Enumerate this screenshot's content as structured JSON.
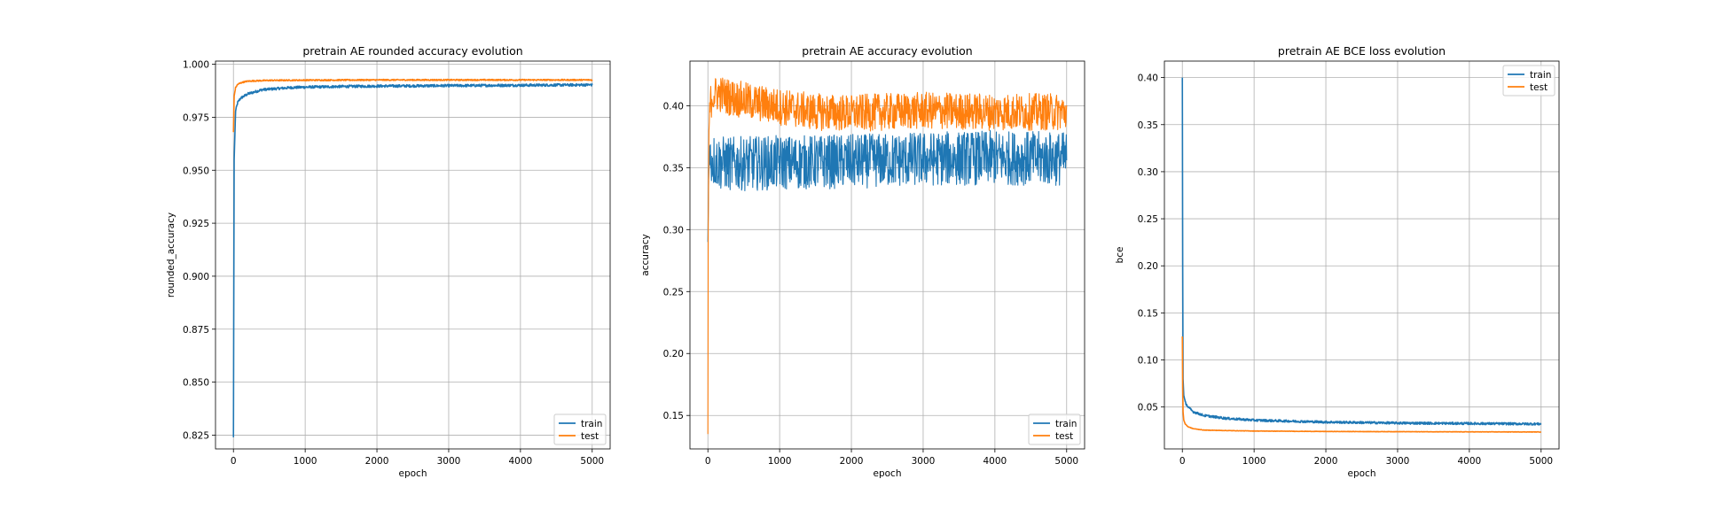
{
  "colors": {
    "train": "#1f77b4",
    "test": "#ff7f0e",
    "grid": "#b0b0b0"
  },
  "chart_data": [
    {
      "type": "line",
      "title": "pretrain AE rounded accuracy evolution",
      "xlabel": "epoch",
      "ylabel": "rounded_accuracy",
      "xlim": [
        -250,
        5250
      ],
      "ylim": [
        0.8185,
        1.0015
      ],
      "xticks": [
        0,
        1000,
        2000,
        3000,
        4000,
        5000
      ],
      "xtick_labels": [
        "0",
        "1000",
        "2000",
        "3000",
        "4000",
        "5000"
      ],
      "yticks": [
        0.825,
        0.85,
        0.875,
        0.9,
        0.925,
        0.95,
        0.975,
        1.0
      ],
      "ytick_labels": [
        "0.825",
        "0.850",
        "0.875",
        "0.900",
        "0.925",
        "0.950",
        "0.975",
        "1.000"
      ],
      "grid": true,
      "legend_loc": "lower right",
      "series": [
        {
          "name": "train",
          "noise": 0.0006,
          "x": [
            0,
            10,
            30,
            60,
            100,
            150,
            200,
            300,
            400,
            600,
            800,
            1000,
            1500,
            2000,
            3000,
            4000,
            5000
          ],
          "y": [
            0.824,
            0.955,
            0.978,
            0.982,
            0.984,
            0.985,
            0.986,
            0.987,
            0.988,
            0.9885,
            0.989,
            0.9892,
            0.9895,
            0.9897,
            0.9899,
            0.9901,
            0.9903
          ]
        },
        {
          "name": "test",
          "noise": 0.0003,
          "x": [
            0,
            10,
            30,
            60,
            100,
            150,
            200,
            300,
            500,
            1000,
            2000,
            3000,
            4000,
            5000
          ],
          "y": [
            0.968,
            0.985,
            0.989,
            0.9905,
            0.9912,
            0.9917,
            0.992,
            0.9922,
            0.9924,
            0.9925,
            0.9926,
            0.9926,
            0.9926,
            0.9926
          ]
        }
      ]
    },
    {
      "type": "line",
      "title": "pretrain AE accuracy evolution",
      "xlabel": "epoch",
      "ylabel": "accuracy",
      "xlim": [
        -250,
        5250
      ],
      "ylim": [
        0.123,
        0.436
      ],
      "xticks": [
        0,
        1000,
        2000,
        3000,
        4000,
        5000
      ],
      "xtick_labels": [
        "0",
        "1000",
        "2000",
        "3000",
        "4000",
        "5000"
      ],
      "yticks": [
        0.15,
        0.2,
        0.25,
        0.3,
        0.35,
        0.4
      ],
      "ytick_labels": [
        "0.15",
        "0.20",
        "0.25",
        "0.30",
        "0.35",
        "0.40"
      ],
      "grid": true,
      "legend_loc": "lower right",
      "series": [
        {
          "name": "train",
          "noise": 0.022,
          "x": [
            0,
            10,
            20,
            40,
            80,
            150,
            300,
            1000,
            2000,
            3000,
            4000,
            5000
          ],
          "y": [
            0.29,
            0.34,
            0.355,
            0.358,
            0.356,
            0.354,
            0.353,
            0.354,
            0.355,
            0.357,
            0.358,
            0.357
          ]
        },
        {
          "name": "test",
          "noise": 0.015,
          "x": [
            0,
            5,
            15,
            30,
            60,
            150,
            300,
            600,
            1000,
            1500,
            2000,
            3000,
            4000,
            5000
          ],
          "y": [
            0.135,
            0.3,
            0.38,
            0.4,
            0.408,
            0.41,
            0.407,
            0.403,
            0.399,
            0.395,
            0.394,
            0.396,
            0.395,
            0.395
          ]
        }
      ]
    },
    {
      "type": "line",
      "title": "pretrain AE BCE loss evolution",
      "xlabel": "epoch",
      "ylabel": "bce",
      "xlim": [
        -250,
        5250
      ],
      "ylim": [
        0.0055,
        0.4175
      ],
      "xticks": [
        0,
        1000,
        2000,
        3000,
        4000,
        5000
      ],
      "xtick_labels": [
        "0",
        "1000",
        "2000",
        "3000",
        "4000",
        "5000"
      ],
      "yticks": [
        0.05,
        0.1,
        0.15,
        0.2,
        0.25,
        0.3,
        0.35,
        0.4
      ],
      "ytick_labels": [
        "0.05",
        "0.10",
        "0.15",
        "0.20",
        "0.25",
        "0.30",
        "0.35",
        "0.40"
      ],
      "grid": true,
      "legend_loc": "upper right",
      "series": [
        {
          "name": "train",
          "noise": 0.0012,
          "x": [
            0,
            5,
            10,
            20,
            40,
            80,
            150,
            300,
            600,
            1000,
            2000,
            3000,
            4000,
            5000
          ],
          "y": [
            0.4,
            0.2,
            0.08,
            0.062,
            0.055,
            0.05,
            0.045,
            0.041,
            0.038,
            0.036,
            0.034,
            0.033,
            0.0325,
            0.032
          ]
        },
        {
          "name": "test",
          "noise": 0.0002,
          "x": [
            0,
            5,
            10,
            20,
            40,
            80,
            150,
            300,
            600,
            1000,
            2000,
            3000,
            4000,
            5000
          ],
          "y": [
            0.125,
            0.07,
            0.045,
            0.036,
            0.032,
            0.029,
            0.027,
            0.0255,
            0.025,
            0.0245,
            0.024,
            0.0238,
            0.0236,
            0.0235
          ]
        }
      ]
    }
  ]
}
